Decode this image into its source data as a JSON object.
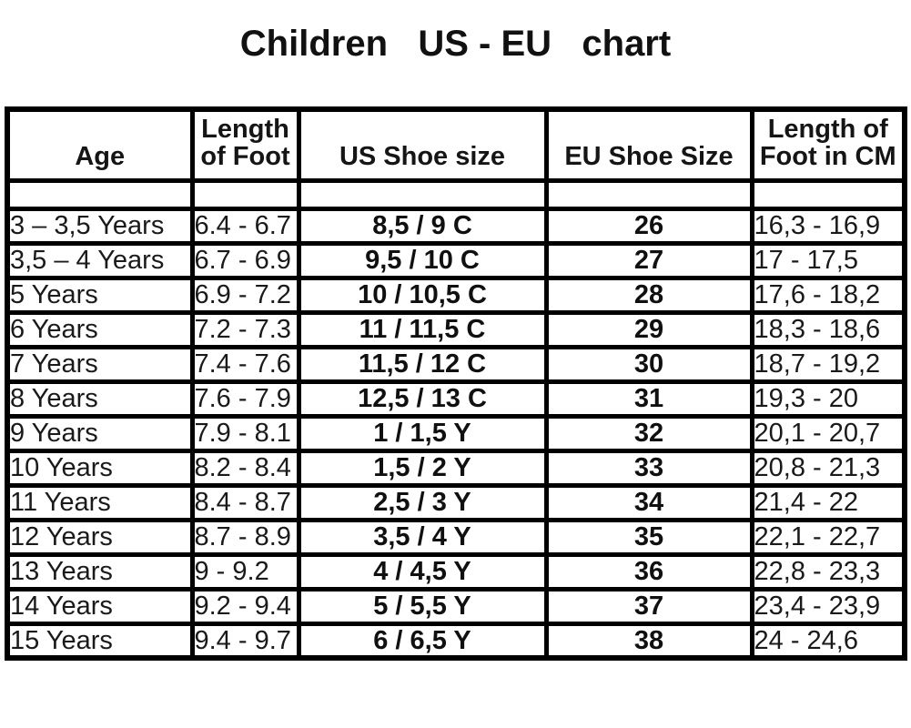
{
  "title": "Children   US - EU   chart",
  "colors": {
    "text": "#1a1a1a",
    "border": "#000000",
    "background": "#ffffff"
  },
  "table": {
    "headers": {
      "age": {
        "lines": [
          "Age"
        ]
      },
      "foot_in": {
        "lines": [
          "Length",
          "of Foot"
        ]
      },
      "us": {
        "lines": [
          "US Shoe size"
        ]
      },
      "eu": {
        "lines": [
          "EU Shoe Size"
        ]
      },
      "foot_cm": {
        "lines": [
          "Length of",
          "Foot in CM"
        ]
      }
    },
    "rows": [
      {
        "age": "3 – 3,5 Years",
        "foot_in": "6.4 - 6.7",
        "us": "8,5 / 9 C",
        "eu": "26",
        "foot_cm": "16,3 - 16,9"
      },
      {
        "age": "3,5 – 4 Years",
        "foot_in": "6.7 - 6.9",
        "us": "9,5 / 10 C",
        "eu": "27",
        "foot_cm": "17 - 17,5"
      },
      {
        "age": "5 Years",
        "foot_in": "6.9 - 7.2",
        "us": "10 / 10,5 C",
        "eu": "28",
        "foot_cm": "17,6 - 18,2"
      },
      {
        "age": "6 Years",
        "foot_in": "7.2 - 7.3",
        "us": "11 / 11,5 C",
        "eu": "29",
        "foot_cm": "18,3 - 18,6"
      },
      {
        "age": "7 Years",
        "foot_in": "7.4 - 7.6",
        "us": "11,5 / 12 C",
        "eu": "30",
        "foot_cm": "18,7 - 19,2"
      },
      {
        "age": "8 Years",
        "foot_in": "7.6 - 7.9",
        "us": "12,5 / 13 C",
        "eu": "31",
        "foot_cm": "19,3 - 20"
      },
      {
        "age": "9 Years",
        "foot_in": "7.9 - 8.1",
        "us": "1 / 1,5 Y",
        "eu": "32",
        "foot_cm": "20,1 - 20,7"
      },
      {
        "age": "10 Years",
        "foot_in": "8.2 - 8.4",
        "us": "1,5 / 2 Y",
        "eu": "33",
        "foot_cm": "20,8 - 21,3"
      },
      {
        "age": "11 Years",
        "foot_in": "8.4 - 8.7",
        "us": "2,5 / 3 Y",
        "eu": "34",
        "foot_cm": "21,4 - 22"
      },
      {
        "age": "12 Years",
        "foot_in": "8.7 - 8.9",
        "us": "3,5 / 4 Y",
        "eu": "35",
        "foot_cm": "22,1 - 22,7"
      },
      {
        "age": "13 Years",
        "foot_in": "9 - 9.2",
        "us": "4 / 4,5 Y",
        "eu": "36",
        "foot_cm": "22,8 - 23,3"
      },
      {
        "age": "14 Years",
        "foot_in": "9.2 - 9.4",
        "us": "5 / 5,5 Y",
        "eu": "37",
        "foot_cm": "23,4 - 23,9"
      },
      {
        "age": "15 Years",
        "foot_in": "9.4 - 9.7",
        "us": "6 / 6,5 Y",
        "eu": "38",
        "foot_cm": "24 - 24,6"
      }
    ]
  }
}
